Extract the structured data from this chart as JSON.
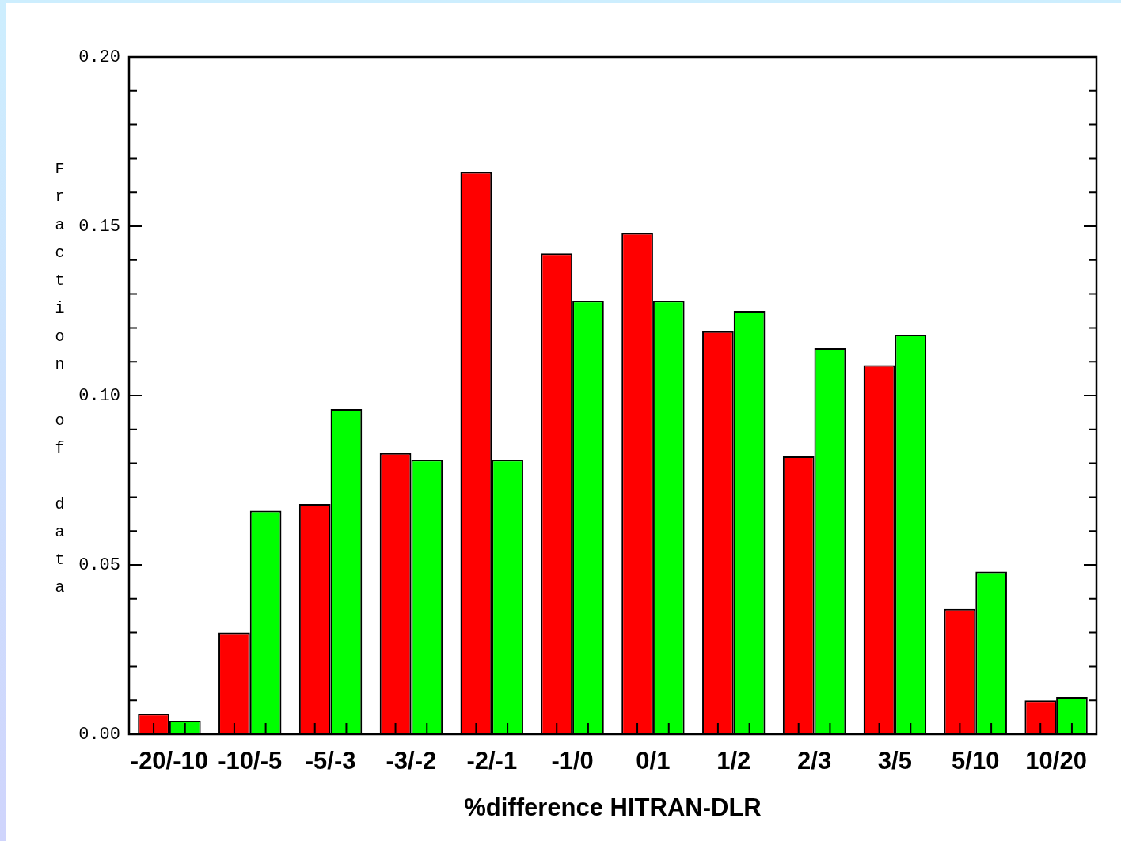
{
  "chart_data": {
    "type": "bar",
    "xlabel": "%difference HITRAN-DLR",
    "ylabel": "Fraction of data",
    "categories": [
      "-20/-10",
      "-10/-5",
      "-5/-3",
      "-3/-2",
      "-2/-1",
      "-1/0",
      "0/1",
      "1/2",
      "2/3",
      "3/5",
      "5/10",
      "10/20"
    ],
    "series": [
      {
        "color": "#ff0000",
        "values": [
          0.006,
          0.03,
          0.068,
          0.083,
          0.166,
          0.142,
          0.148,
          0.119,
          0.082,
          0.109,
          0.037,
          0.01
        ]
      },
      {
        "color": "#00ff00",
        "values": [
          0.004,
          0.066,
          0.096,
          0.081,
          0.081,
          0.128,
          0.128,
          0.125,
          0.114,
          0.118,
          0.048,
          0.011
        ]
      }
    ],
    "ylim": [
      0,
      0.2
    ],
    "yticks": [
      {
        "value": 0,
        "label": "0.00"
      },
      {
        "value": 0.01,
        "label": null
      },
      {
        "value": 0.02,
        "label": null
      },
      {
        "value": 0.03,
        "label": null
      },
      {
        "value": 0.04,
        "label": null
      },
      0.05,
      {
        "value": 0.06,
        "label": null
      },
      {
        "value": 0.07,
        "label": null
      },
      {
        "value": 0.08,
        "label": null
      },
      {
        "value": 0.09,
        "label": null
      },
      {
        "value": 0.1,
        "label": "0.10"
      },
      {
        "value": 0.11,
        "label": null
      },
      {
        "value": 0.12,
        "label": null
      },
      {
        "value": 0.13,
        "label": null
      },
      {
        "value": 0.14,
        "label": null
      },
      0.15,
      {
        "value": 0.16,
        "label": null
      },
      {
        "value": 0.17,
        "label": null
      },
      {
        "value": 0.18,
        "label": null
      },
      {
        "value": 0.19,
        "label": null
      },
      {
        "value": 0.2,
        "label": "0.20"
      }
    ]
  }
}
